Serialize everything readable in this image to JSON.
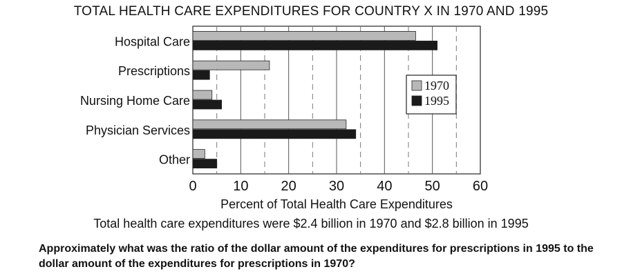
{
  "chart_data": {
    "type": "bar",
    "orientation": "horizontal",
    "title": "TOTAL HEALTH CARE EXPENDITURES FOR COUNTRY X IN 1970 AND 1995",
    "categories": [
      "Hospital Care",
      "Prescriptions",
      "Nursing Home Care",
      "Physician Services",
      "Other"
    ],
    "series": [
      {
        "name": "1970",
        "values": [
          46.5,
          16,
          4,
          32,
          2.5
        ],
        "color": "#b8b8b8"
      },
      {
        "name": "1995",
        "values": [
          51,
          3.5,
          6,
          34,
          5
        ],
        "color": "#1a1a1a"
      }
    ],
    "xlabel": "Percent of Total Health Care Expenditures",
    "xlim": [
      0,
      60
    ],
    "xticks": [
      0,
      10,
      20,
      30,
      40,
      50,
      60
    ],
    "grid": true,
    "legend_position": "right"
  },
  "note": "Total health care expenditures were $2.4 billion in 1970 and $2.8 billion in 1995",
  "question": "Approximately what was the ratio of the dollar amount of the expenditures for prescriptions in 1995 to the dollar amount of the expenditures for prescriptions in 1970?"
}
